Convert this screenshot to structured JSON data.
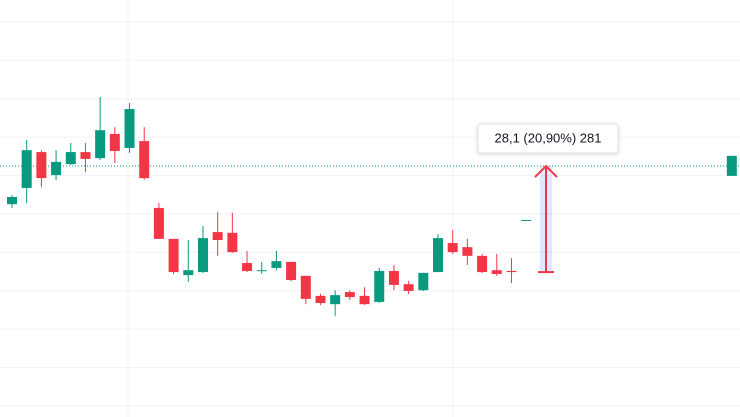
{
  "chart_data": {
    "type": "candlestick",
    "open": [
      152.4,
      156.7,
      166.2,
      160.1,
      163.0,
      166.2,
      164.6,
      171.0,
      167.3,
      169.1,
      151.4,
      143.2,
      133.6,
      134.4,
      145.0,
      144.8,
      136.8,
      134.7,
      135.5,
      137.1,
      133.4,
      128.1,
      125.9,
      129.1,
      128.1,
      126.5,
      134.7,
      131.2,
      129.6,
      134.4,
      142.1,
      141.0,
      138.7,
      134.9,
      134.7,
      148.2,
      null,
      null,
      null,
      null,
      null,
      null,
      null,
      null,
      null,
      null,
      null,
      null,
      null,
      159.9
    ],
    "high": [
      154.8,
      169.4,
      166.7,
      166.7,
      168.6,
      168.6,
      180.8,
      172.8,
      179.2,
      172.8,
      152.7,
      143.2,
      142.9,
      146.6,
      150.3,
      150.1,
      140.0,
      137.1,
      140.0,
      137.1,
      133.4,
      128.6,
      129.6,
      129.6,
      130.4,
      135.5,
      136.3,
      132.0,
      134.2,
      144.5,
      145.5,
      143.2,
      139.2,
      139.2,
      138.1,
      148.2,
      null,
      null,
      null,
      null,
      null,
      null,
      null,
      null,
      null,
      null,
      null,
      null,
      null,
      165.2
    ],
    "low": [
      151.4,
      152.7,
      156.9,
      158.8,
      162.8,
      160.9,
      164.1,
      163.3,
      166.0,
      158.8,
      143.2,
      133.9,
      131.8,
      134.2,
      138.7,
      139.5,
      134.4,
      133.9,
      134.9,
      132.0,
      125.9,
      125.7,
      122.8,
      127.0,
      125.7,
      126.2,
      129.6,
      128.6,
      129.4,
      134.4,
      139.2,
      136.3,
      134.2,
      133.4,
      131.5,
      148.2,
      null,
      null,
      null,
      null,
      null,
      null,
      null,
      null,
      null,
      null,
      null,
      null,
      null,
      159.9
    ],
    "close": [
      154.3,
      166.7,
      159.3,
      163.6,
      166.2,
      164.4,
      172.0,
      166.5,
      177.6,
      159.3,
      143.2,
      134.4,
      134.9,
      143.4,
      142.9,
      139.7,
      134.7,
      134.9,
      137.3,
      132.3,
      127.3,
      126.2,
      128.3,
      127.8,
      125.9,
      134.7,
      131.0,
      129.4,
      134.2,
      143.4,
      139.7,
      138.7,
      134.4,
      133.9,
      134.4,
      148.2,
      null,
      null,
      null,
      null,
      null,
      null,
      null,
      null,
      null,
      null,
      null,
      null,
      null,
      165.2
    ],
    "up_color": "#089981",
    "down_color": "#f23645",
    "ylim": [
      96,
      206.5
    ],
    "grid": true,
    "price_line": {
      "value": 162.5,
      "color": "#089981"
    },
    "measure": {
      "from": 134.4,
      "to": 162.5,
      "label": "28,1 (20,90%) 281",
      "color": "#f23645"
    }
  }
}
